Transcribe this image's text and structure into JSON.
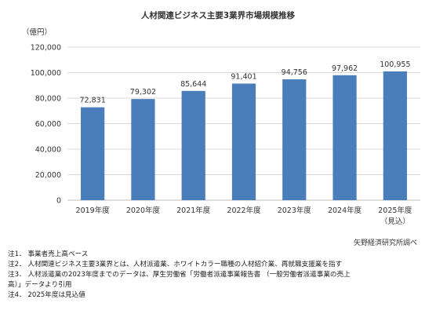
{
  "title": "人材関連ビジネス主要3業界市場規模推移",
  "y_unit": "（億円）",
  "source": "矢野経済研究所調べ",
  "notes": [
    "注1． 事業者売上高ベース",
    "注2． 人材関連ビジネス主要3業界とは、人材派遣業、ホワイトカラー職種の人材紹介業、再就職支援業を指す",
    "注3． 人材派遣業の2023年度までのデータは、厚生労働省「労働者派遣事業報告書 （一般労働者派遣事業の売上",
    "高）」データより引用",
    "注4． 2025年度は見込値"
  ],
  "colors": {
    "bar": "#4a7ebb",
    "grid": "#d9d9d9",
    "axis": "#bfbfbf"
  },
  "chart_data": {
    "type": "bar",
    "title": "人材関連ビジネス主要3業界市場規模推移",
    "ylabel": "（億円）",
    "categories": [
      "2019年度",
      "2020年度",
      "2021年度",
      "2022年度",
      "2023年度",
      "2024年度",
      "2025年度"
    ],
    "category_sublabels": [
      "",
      "",
      "",
      "",
      "",
      "",
      "（見込）"
    ],
    "values": [
      72831,
      79302,
      85644,
      91401,
      94756,
      97962,
      100955
    ],
    "value_labels": [
      "72,831",
      "79,302",
      "85,644",
      "91,401",
      "94,756",
      "97,962",
      "100,955"
    ],
    "ylim": [
      0,
      120000
    ],
    "yticks": [
      0,
      20000,
      40000,
      60000,
      80000,
      100000,
      120000
    ],
    "ytick_labels": [
      "0",
      "20,000",
      "40,000",
      "60,000",
      "80,000",
      "100,000",
      "120,000"
    ],
    "grid": true,
    "legend": "none"
  }
}
